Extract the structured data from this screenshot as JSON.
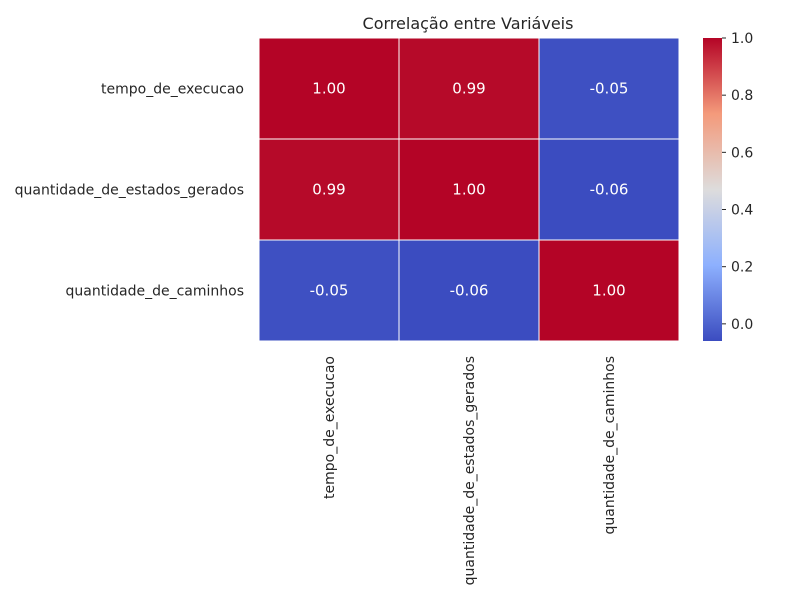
{
  "chart_data": {
    "type": "heatmap",
    "title": "Correlação entre Variáveis",
    "row_labels": [
      "tempo_de_execucao",
      "quantidade_de_estados_gerados",
      "quantidade_de_caminhos"
    ],
    "col_labels": [
      "tempo_de_execucao",
      "quantidade_de_estados_gerados",
      "quantidade_de_caminhos"
    ],
    "values": [
      [
        1.0,
        0.99,
        -0.05
      ],
      [
        0.99,
        1.0,
        -0.06
      ],
      [
        -0.05,
        -0.06,
        1.0
      ]
    ],
    "annotations": [
      [
        "1.00",
        "0.99",
        "-0.05"
      ],
      [
        "0.99",
        "1.00",
        "-0.06"
      ],
      [
        "-0.05",
        "-0.06",
        "1.00"
      ]
    ],
    "colormap": "coolwarm",
    "vmin": -0.06,
    "vmax": 1.0,
    "colorbar_ticks": [
      "0.0",
      "0.2",
      "0.4",
      "0.6",
      "0.8",
      "1.0"
    ],
    "colorbar_tick_values": [
      0.0,
      0.2,
      0.4,
      0.6,
      0.8,
      1.0
    ],
    "xlabel": "",
    "ylabel": "",
    "grid": false,
    "legend": "colorbar-right"
  }
}
